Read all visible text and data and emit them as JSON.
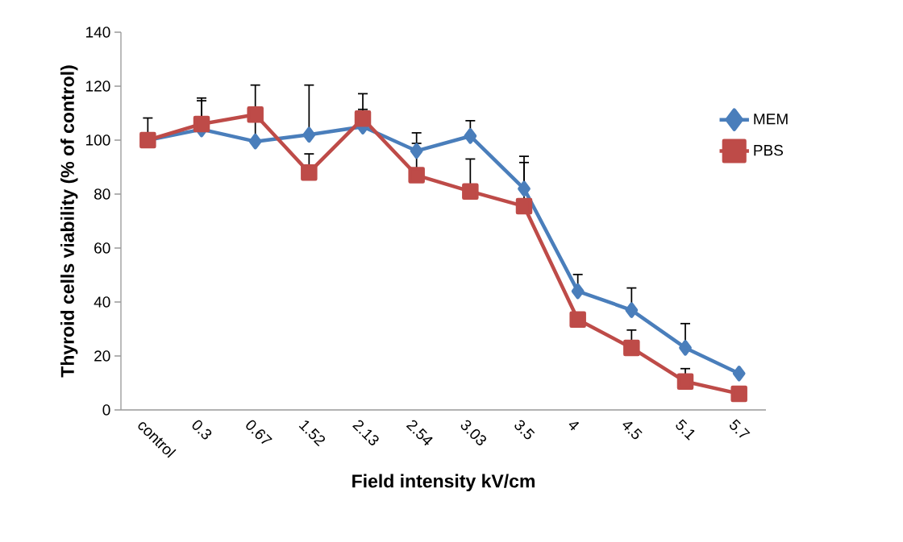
{
  "chart_data": {
    "type": "line",
    "xlabel": "Field intensity kV/cm",
    "ylabel": "Thyroid cells viability (% of control)",
    "categories": [
      "control",
      "0.3",
      "0.67",
      "1.52",
      "2.13",
      "2.54",
      "3.03",
      "3.5",
      "4",
      "4.5",
      "5.1",
      "5.7"
    ],
    "series": [
      {
        "name": "MEM",
        "color": "#4a7ebb",
        "marker": "diamond",
        "values": [
          100,
          104,
          99.5,
          102,
          105,
          96,
          101.5,
          82,
          44,
          37,
          23,
          13.5
        ],
        "errors": [
          [
            100,
            108.2
          ],
          [
            104,
            115.6
          ],
          [
            99.5,
            120.4
          ],
          [
            102,
            120.4
          ],
          [
            105,
            111.4
          ],
          [
            96,
            102.7
          ],
          [
            101.5,
            107.2
          ],
          [
            82,
            94
          ],
          [
            44,
            50.2
          ],
          [
            37,
            45.2
          ],
          [
            23,
            32
          ],
          null
        ]
      },
      {
        "name": "PBS",
        "color": "#be4b48",
        "marker": "square",
        "values": [
          100,
          106,
          109.5,
          88,
          108,
          87,
          81,
          75.5,
          33.5,
          23,
          10.5,
          6
        ],
        "errors": [
          null,
          [
            106,
            114.6
          ],
          null,
          [
            88,
            94.9
          ],
          [
            108,
            117.2
          ],
          [
            87,
            98.8
          ],
          [
            81,
            93
          ],
          [
            75.5,
            91.7
          ],
          null,
          [
            23,
            29.6
          ],
          [
            10.5,
            15.3
          ],
          null
        ]
      }
    ],
    "ylim": [
      0,
      140
    ],
    "yticks": [
      0,
      20,
      40,
      60,
      80,
      100,
      120,
      140
    ],
    "grid": false,
    "legend": "right",
    "line_style": "solid"
  }
}
